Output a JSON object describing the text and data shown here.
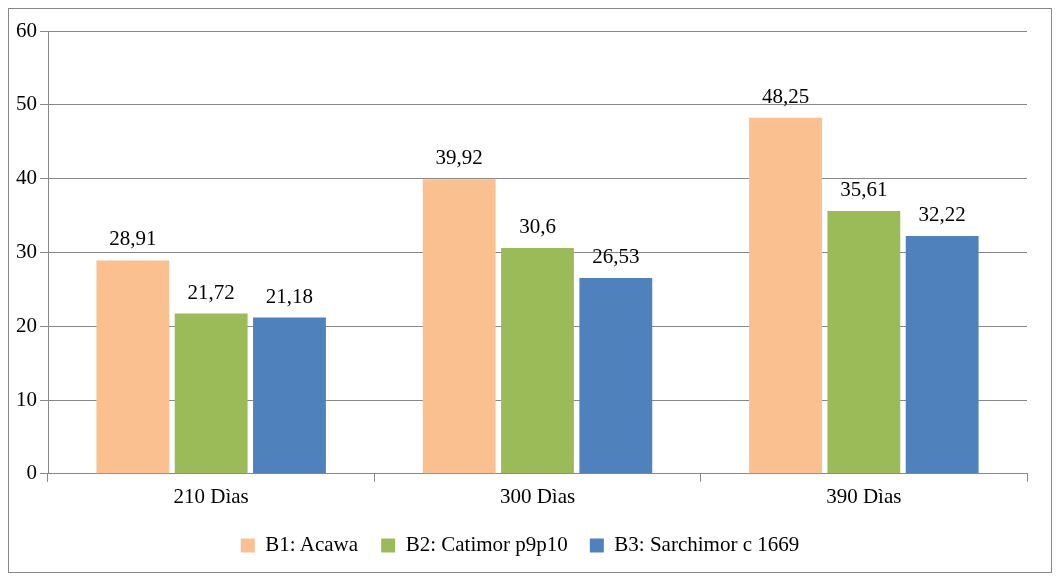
{
  "chart_data": {
    "type": "bar",
    "categories": [
      "210 Dìas",
      "300 Dìas",
      "390 Dìas"
    ],
    "series": [
      {
        "name": "B1: Acawa",
        "color": "#fac090",
        "values": [
          28.91,
          39.92,
          48.25
        ],
        "value_labels": [
          "28,91",
          "39,92",
          "48,25"
        ]
      },
      {
        "name": "B2: Catimor p9p10",
        "color": "#9bbb59",
        "values": [
          21.72,
          30.6,
          35.61
        ],
        "value_labels": [
          "21,72",
          "30,6",
          "35,61"
        ]
      },
      {
        "name": "B3: Sarchimor c 1669",
        "color": "#4f81bd",
        "values": [
          21.18,
          26.53,
          32.22
        ],
        "value_labels": [
          "21,18",
          "26,53",
          "32,22"
        ]
      }
    ],
    "ylim": [
      0,
      60
    ],
    "yticks": [
      0,
      10,
      20,
      30,
      40,
      50,
      60
    ],
    "grid": "y",
    "legend": "bottom"
  }
}
